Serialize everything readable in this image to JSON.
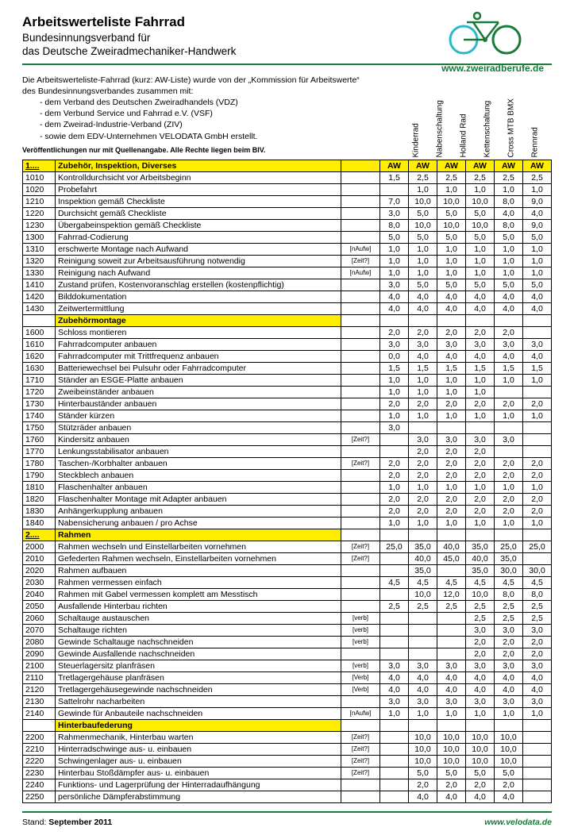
{
  "header": {
    "title": "Arbeitswerteliste Fahrrad",
    "subtitle_l1": "Bundesinnungsverband für",
    "subtitle_l2": "das Deutsche Zweiradmechaniker-Handwerk",
    "logo_url": "www.zweiradberufe.de"
  },
  "intro": {
    "line1": "Die Arbeitswerteliste-Fahrrad (kurz: AW-Liste) wurde von der „Kommission für Arbeitswerte“",
    "line2": "des  Bundesinnungsverbandes zusammen mit:",
    "bullets": [
      "- dem Verband des Deutschen Zweiradhandels (VDZ)",
      "- dem Verbund Service und Fahrrad e.V. (VSF)",
      "- dem Zweirad-Industrie-Verband (ZIV)",
      "- sowie dem EDV-Unternehmen VELODATA GmbH erstellt."
    ],
    "copyright": "Veröffentlichungen nur mit Quellenangabe. Alle Rechte liegen beim BIV."
  },
  "columns": [
    "Kinderrad",
    "Nabenschaltung",
    "Holland Rad",
    "Kettenschaltung",
    "Cross MTB BMX",
    "Rennrad"
  ],
  "aw_label": "AW",
  "rows": [
    {
      "type": "section",
      "code": "1....",
      "desc": "Zubehör, Inspektion, Diverses",
      "aw": true
    },
    {
      "code": "1010",
      "desc": "Kontrolldurchsicht vor Arbeitsbeginn",
      "v": [
        "1,5",
        "2,5",
        "2,5",
        "2,5",
        "2,5",
        "2,5"
      ]
    },
    {
      "code": "1020",
      "desc": "Probefahrt",
      "v": [
        "",
        "1,0",
        "1,0",
        "1,0",
        "1,0",
        "1,0"
      ]
    },
    {
      "code": "1210",
      "desc": "Inspektion gemäß Checkliste",
      "v": [
        "7,0",
        "10,0",
        "10,0",
        "10,0",
        "8,0",
        "9,0"
      ]
    },
    {
      "code": "1220",
      "desc": "Durchsicht gemäß Checkliste",
      "v": [
        "3,0",
        "5,0",
        "5,0",
        "5,0",
        "4,0",
        "4,0"
      ]
    },
    {
      "code": "1230",
      "desc": "Übergabeinspektion gemäß Checkliste",
      "v": [
        "8,0",
        "10,0",
        "10,0",
        "10,0",
        "8,0",
        "9,0"
      ]
    },
    {
      "code": "1300",
      "desc": "Fahrrad-Codierung",
      "v": [
        "5,0",
        "5,0",
        "5,0",
        "5,0",
        "5,0",
        "5,0"
      ]
    },
    {
      "code": "1310",
      "desc": "erschwerte Montage nach Aufwand",
      "note": "[nAufw]",
      "v": [
        "1,0",
        "1,0",
        "1,0",
        "1,0",
        "1,0",
        "1,0"
      ]
    },
    {
      "code": "1320",
      "desc": "Reinigung soweit zur Arbeitsausführung notwendig",
      "note": "[Zeit?]",
      "v": [
        "1,0",
        "1,0",
        "1,0",
        "1,0",
        "1,0",
        "1,0"
      ]
    },
    {
      "code": "1330",
      "desc": "Reinigung nach Aufwand",
      "note": "[nAufw]",
      "v": [
        "1,0",
        "1,0",
        "1,0",
        "1,0",
        "1,0",
        "1,0"
      ]
    },
    {
      "code": "1410",
      "desc": "Zustand prüfen, Kostenvoranschlag erstellen (kostenpflichtig)",
      "v": [
        "3,0",
        "5,0",
        "5,0",
        "5,0",
        "5,0",
        "5,0"
      ]
    },
    {
      "code": "1420",
      "desc": "Bilddokumentation",
      "v": [
        "4,0",
        "4,0",
        "4,0",
        "4,0",
        "4,0",
        "4,0"
      ]
    },
    {
      "code": "1430",
      "desc": "Zeitwertermittlung",
      "v": [
        "4,0",
        "4,0",
        "4,0",
        "4,0",
        "4,0",
        "4,0"
      ]
    },
    {
      "type": "subhead",
      "desc": "Zubehörmontage"
    },
    {
      "code": "1600",
      "desc": "Schloss montieren",
      "v": [
        "2,0",
        "2,0",
        "2,0",
        "2,0",
        "2,0",
        ""
      ]
    },
    {
      "code": "1610",
      "desc": "Fahrradcomputer anbauen",
      "v": [
        "3,0",
        "3,0",
        "3,0",
        "3,0",
        "3,0",
        "3,0"
      ]
    },
    {
      "code": "1620",
      "desc": "Fahrradcomputer mit Trittfrequenz anbauen",
      "v": [
        "0,0",
        "4,0",
        "4,0",
        "4,0",
        "4,0",
        "4,0"
      ]
    },
    {
      "code": "1630",
      "desc": "Batteriewechsel bei Pulsuhr oder Fahrradcomputer",
      "v": [
        "1,5",
        "1,5",
        "1,5",
        "1,5",
        "1,5",
        "1,5"
      ]
    },
    {
      "code": "1710",
      "desc": "Ständer an ESGE-Platte anbauen",
      "v": [
        "1,0",
        "1,0",
        "1,0",
        "1,0",
        "1,0",
        "1,0"
      ]
    },
    {
      "code": "1720",
      "desc": "Zweibeinständer anbauen",
      "v": [
        "1,0",
        "1,0",
        "1,0",
        "1,0",
        "",
        ""
      ]
    },
    {
      "code": "1730",
      "desc": "Hinterbauständer anbauen",
      "v": [
        "2,0",
        "2,0",
        "2,0",
        "2,0",
        "2,0",
        "2,0"
      ]
    },
    {
      "code": "1740",
      "desc": "Ständer kürzen",
      "v": [
        "1,0",
        "1,0",
        "1,0",
        "1,0",
        "1,0",
        "1,0"
      ]
    },
    {
      "code": "1750",
      "desc": "Stützräder anbauen",
      "v": [
        "3,0",
        "",
        "",
        "",
        "",
        ""
      ]
    },
    {
      "code": "1760",
      "desc": "Kindersitz anbauen",
      "note": "[Zeit?]",
      "v": [
        "",
        "3,0",
        "3,0",
        "3,0",
        "3,0",
        ""
      ]
    },
    {
      "code": "1770",
      "desc": "Lenkungsstabilisator anbauen",
      "v": [
        "",
        "2,0",
        "2,0",
        "2,0",
        "",
        ""
      ]
    },
    {
      "code": "1780",
      "desc": "Taschen-/Korbhalter anbauen",
      "note": "[Zeit?]",
      "v": [
        "2,0",
        "2,0",
        "2,0",
        "2,0",
        "2,0",
        "2,0"
      ]
    },
    {
      "code": "1790",
      "desc": "Steckblech  anbauen",
      "v": [
        "2,0",
        "2,0",
        "2,0",
        "2,0",
        "2,0",
        "2,0"
      ]
    },
    {
      "code": "1810",
      "desc": "Flaschenhalter anbauen",
      "v": [
        "1,0",
        "1,0",
        "1,0",
        "1,0",
        "1,0",
        "1,0"
      ]
    },
    {
      "code": "1820",
      "desc": "Flaschenhalter Montage mit Adapter anbauen",
      "v": [
        "2,0",
        "2,0",
        "2,0",
        "2,0",
        "2,0",
        "2,0"
      ]
    },
    {
      "code": "1830",
      "desc": "Anhängerkupplung anbauen",
      "v": [
        "2,0",
        "2,0",
        "2,0",
        "2,0",
        "2,0",
        "2,0"
      ]
    },
    {
      "code": "1840",
      "desc": "Nabensicherung anbauen / pro Achse",
      "v": [
        "1,0",
        "1,0",
        "1,0",
        "1,0",
        "1,0",
        "1,0"
      ]
    },
    {
      "type": "section",
      "code": "2....",
      "desc": "Rahmen"
    },
    {
      "code": "2000",
      "desc": "Rahmen wechseln und Einstellarbeiten vornehmen",
      "note": "[Zeit?]",
      "v": [
        "25,0",
        "35,0",
        "40,0",
        "35,0",
        "25,0",
        "25,0"
      ]
    },
    {
      "code": "2010",
      "desc": "Gefederten Rahmen wechseln, Einstellarbeiten vornehmen",
      "note": "[Zeit?]",
      "v": [
        "",
        "40,0",
        "45,0",
        "40,0",
        "35,0",
        ""
      ]
    },
    {
      "code": "2020",
      "desc": "Rahmen aufbauen",
      "v": [
        "",
        "35,0",
        "",
        "35,0",
        "30,0",
        "30,0"
      ]
    },
    {
      "code": "2030",
      "desc": "Rahmen vermessen einfach",
      "v": [
        "4,5",
        "4,5",
        "4,5",
        "4,5",
        "4,5",
        "4,5"
      ]
    },
    {
      "code": "2040",
      "desc": "Rahmen mit Gabel vermessen komplett am Messtisch",
      "v": [
        "",
        "10,0",
        "12,0",
        "10,0",
        "8,0",
        "8,0"
      ]
    },
    {
      "code": "2050",
      "desc": "Ausfallende Hinterbau richten",
      "v": [
        "2,5",
        "2,5",
        "2,5",
        "2,5",
        "2,5",
        "2,5"
      ]
    },
    {
      "code": "2060",
      "desc": "Schaltauge austauschen",
      "note": "[verb]",
      "v": [
        "",
        "",
        "",
        "2,5",
        "2,5",
        "2,5"
      ]
    },
    {
      "code": "2070",
      "desc": "Schaltauge richten",
      "note": "[verb]",
      "v": [
        "",
        "",
        "",
        "3,0",
        "3,0",
        "3,0"
      ]
    },
    {
      "code": "2080",
      "desc": "Gewinde Schaltauge nachschneiden",
      "note": "[verb]",
      "v": [
        "",
        "",
        "",
        "2,0",
        "2,0",
        "2,0"
      ]
    },
    {
      "code": "2090",
      "desc": "Gewinde Ausfallende nachschneiden",
      "v": [
        "",
        "",
        "",
        "2,0",
        "2,0",
        "2,0"
      ]
    },
    {
      "code": "2100",
      "desc": "Steuerlagersitz planfräsen",
      "note": "[verb]",
      "v": [
        "3,0",
        "3,0",
        "3,0",
        "3,0",
        "3,0",
        "3,0"
      ]
    },
    {
      "code": "2110",
      "desc": "Tretlagergehäuse planfräsen",
      "note": "[Verb]",
      "v": [
        "4,0",
        "4,0",
        "4,0",
        "4,0",
        "4,0",
        "4,0"
      ]
    },
    {
      "code": "2120",
      "desc": "Tretlagergehäusegewinde nachschneiden",
      "note": "[Verb]",
      "v": [
        "4,0",
        "4,0",
        "4,0",
        "4,0",
        "4,0",
        "4,0"
      ]
    },
    {
      "code": "2130",
      "desc": "Sattelrohr nacharbeiten",
      "v": [
        "3,0",
        "3,0",
        "3,0",
        "3,0",
        "3,0",
        "3,0"
      ]
    },
    {
      "code": "2140",
      "desc": "Gewinde für Anbauteile nachschneiden",
      "note": "[nAufw]",
      "v": [
        "1,0",
        "1,0",
        "1,0",
        "1,0",
        "1,0",
        "1,0"
      ]
    },
    {
      "type": "subhead",
      "desc": "Hinterbaufederung"
    },
    {
      "code": "2200",
      "desc": "Rahmenmechanik, Hinterbau warten",
      "note": "[Zeit?]",
      "v": [
        "",
        "10,0",
        "10,0",
        "10,0",
        "10,0",
        ""
      ]
    },
    {
      "code": "2210",
      "desc": "Hinterradschwinge aus- u. einbauen",
      "note": "[Zeit?]",
      "v": [
        "",
        "10,0",
        "10,0",
        "10,0",
        "10,0",
        ""
      ]
    },
    {
      "code": "2220",
      "desc": "Schwingenlager aus- u. einbauen",
      "note": "[Zeit?]",
      "v": [
        "",
        "10,0",
        "10,0",
        "10,0",
        "10,0",
        ""
      ]
    },
    {
      "code": "2230",
      "desc": "Hinterbau Stoßdämpfer aus- u. einbauen",
      "note": "[Zeit?]",
      "v": [
        "",
        "5,0",
        "5,0",
        "5,0",
        "5,0",
        ""
      ]
    },
    {
      "code": "2240",
      "desc": "Funktions- und Lagerprüfung der Hinterradaufhängung",
      "v": [
        "",
        "2,0",
        "2,0",
        "2,0",
        "2,0",
        ""
      ]
    },
    {
      "code": "2250",
      "desc": "persönliche Dämpferabstimmung",
      "v": [
        "",
        "4,0",
        "4,0",
        "4,0",
        "4,0",
        ""
      ]
    }
  ],
  "footer": {
    "stand_label": "Stand:",
    "stand_value": "September 2011",
    "url": "www.velodata.de"
  },
  "colors": {
    "accent": "#1a7a3a",
    "highlight": "#ffee00",
    "cyan": "#2bb8c9"
  }
}
